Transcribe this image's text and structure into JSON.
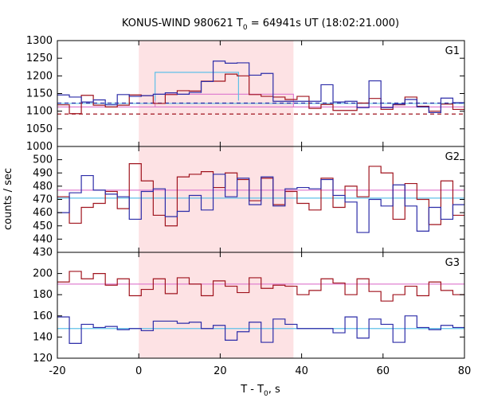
{
  "chart_data": {
    "type": "line",
    "title": "KONUS-WIND 980621 T",
    "title_sub": "0",
    "title_rest": " = 64941s UT (18:02:21.000)",
    "xlabel": "T - T",
    "xlabel_sub": "0",
    "xlabel_rest": ", s",
    "ylabel": "counts / sec",
    "xlim": [
      -20,
      80
    ],
    "x_ticks": [
      -20,
      0,
      20,
      40,
      60,
      80
    ],
    "highlight_interval": [
      0,
      38
    ],
    "colors": {
      "red_series": "#a0141e",
      "blue_series": "#2c2ca8",
      "pink_line": "#e080d0",
      "cyan_line": "#60c0e8",
      "highlight": "#fde2e4"
    },
    "panels": [
      {
        "label": "G1",
        "ylim": [
          1000,
          1300
        ],
        "y_ticks": [
          1000,
          1050,
          1100,
          1150,
          1200,
          1250,
          1300
        ],
        "bin_start": -20,
        "bin_width": 2.944,
        "red": [
          1118,
          1093,
          1145,
          1117,
          1112,
          1117,
          1146,
          1144,
          1122,
          1147,
          1158,
          1157,
          1185,
          1185,
          1205,
          1200,
          1147,
          1142,
          1140,
          1133,
          1142,
          1108,
          1119,
          1102,
          1102,
          1123,
          1136,
          1105,
          1118,
          1140,
          1114,
          1100,
          1120,
          1105,
          1122
        ],
        "blue": [
          1146,
          1140,
          1126,
          1132,
          1118,
          1147,
          1142,
          1144,
          1148,
          1152,
          1148,
          1153,
          1184,
          1242,
          1236,
          1237,
          1202,
          1207,
          1128,
          1128,
          1128,
          1128,
          1175,
          1126,
          1128,
          1110,
          1186,
          1110,
          1120,
          1133,
          1112,
          1096,
          1137,
          1124,
          1125
        ],
        "pink_level": 1112,
        "cyan_level": 1122,
        "blue_dashed_level": 1123,
        "red_dashed_level": 1092,
        "cyan_box": {
          "x": [
            4,
            24.5
          ],
          "level": 1210
        },
        "blue_box_level": 1130,
        "pink_box": {
          "x": [
            4,
            38
          ],
          "level": 1148
        }
      },
      {
        "label": "G2",
        "ylim": [
          430,
          510
        ],
        "y_ticks": [
          430,
          440,
          450,
          460,
          470,
          480,
          490,
          500
        ],
        "bin_start": -20,
        "bin_width": 2.944,
        "red": [
          472,
          452,
          464,
          467,
          476,
          463,
          497,
          484,
          458,
          450,
          487,
          489,
          491,
          479,
          490,
          485,
          469,
          486,
          466,
          476,
          467,
          462,
          486,
          464,
          480,
          472,
          495,
          490,
          455,
          482,
          470,
          451,
          484,
          458,
          462
        ],
        "blue": [
          460,
          475,
          488,
          477,
          474,
          472,
          455,
          476,
          478,
          457,
          461,
          473,
          462,
          489,
          472,
          486,
          466,
          487,
          465,
          478,
          479,
          478,
          485,
          473,
          468,
          445,
          470,
          465,
          481,
          465,
          446,
          464,
          455,
          466,
          454
        ],
        "pink_level": 477,
        "cyan_level": 471
      },
      {
        "label": "G3",
        "ylim": [
          120,
          220
        ],
        "y_ticks": [
          120,
          140,
          160,
          180,
          200
        ],
        "bin_start": -20,
        "bin_width": 2.944,
        "red": [
          192,
          202,
          195,
          200,
          189,
          195,
          179,
          185,
          195,
          181,
          196,
          190,
          179,
          193,
          188,
          182,
          196,
          186,
          189,
          188,
          180,
          184,
          195,
          191,
          180,
          195,
          183,
          174,
          180,
          188,
          179,
          192,
          184,
          180,
          187
        ],
        "blue": [
          159,
          134,
          152,
          149,
          150,
          147,
          148,
          146,
          155,
          155,
          153,
          154,
          148,
          151,
          137,
          145,
          154,
          135,
          157,
          152,
          148,
          148,
          148,
          144,
          159,
          139,
          157,
          152,
          135,
          160,
          149,
          147,
          151,
          149,
          155
        ],
        "pink_level": 190,
        "cyan_level": 148
      }
    ]
  }
}
